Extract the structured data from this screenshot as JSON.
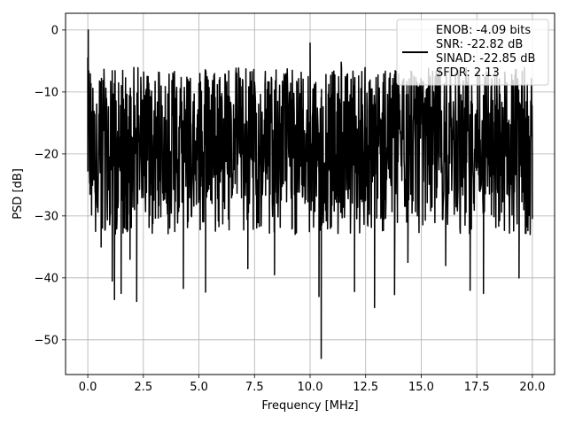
{
  "chart_data": {
    "type": "line",
    "xlabel": "Frequency [MHz]",
    "ylabel": "PSD [dB]",
    "xlim": [
      -1.0,
      21.0
    ],
    "ylim": [
      -55.6,
      2.7
    ],
    "xticks": [
      0.0,
      2.5,
      5.0,
      7.5,
      10.0,
      12.5,
      15.0,
      17.5,
      20.0
    ],
    "xtick_labels": [
      "0.0",
      "2.5",
      "5.0",
      "7.5",
      "10.0",
      "12.5",
      "15.0",
      "17.5",
      "20.0"
    ],
    "yticks": [
      0,
      -10,
      -20,
      -30,
      -40,
      -50
    ],
    "ytick_labels": [
      "0",
      "−10",
      "−20",
      "−30",
      "−40",
      "−50"
    ],
    "grid": true,
    "legend_placement": "upper-right",
    "series": [
      {
        "name": "ENOB: -4.09 bits\nSNR: -22.82 dB\nSINAD: -22.85 dB\nSFDR: 2.13",
        "color": "#000000",
        "x_range": [
          0.0,
          20.0
        ],
        "typical_band": [
          -28,
          -11
        ],
        "notable_points": [
          {
            "x": 0.0,
            "y": -4.5
          },
          {
            "x": 0.02,
            "y": 0.0
          },
          {
            "x": 0.1,
            "y": -26.5
          },
          {
            "x": 0.35,
            "y": -32.5
          },
          {
            "x": 0.6,
            "y": -35.0
          },
          {
            "x": 1.1,
            "y": -40.5
          },
          {
            "x": 1.2,
            "y": -43.5
          },
          {
            "x": 1.5,
            "y": -42.5
          },
          {
            "x": 1.9,
            "y": -37.0
          },
          {
            "x": 2.2,
            "y": -43.8
          },
          {
            "x": 4.3,
            "y": -41.7
          },
          {
            "x": 4.5,
            "y": -8.0
          },
          {
            "x": 5.3,
            "y": -42.3
          },
          {
            "x": 7.2,
            "y": -38.5
          },
          {
            "x": 8.4,
            "y": -39.5
          },
          {
            "x": 9.2,
            "y": -6.5
          },
          {
            "x": 10.0,
            "y": -2.1
          },
          {
            "x": 10.4,
            "y": -43.0
          },
          {
            "x": 10.5,
            "y": -53.0
          },
          {
            "x": 11.4,
            "y": -5.2
          },
          {
            "x": 12.0,
            "y": -42.2
          },
          {
            "x": 12.9,
            "y": -44.8
          },
          {
            "x": 13.8,
            "y": -42.7
          },
          {
            "x": 14.4,
            "y": -37.5
          },
          {
            "x": 16.1,
            "y": -38.0
          },
          {
            "x": 17.2,
            "y": -42.0
          },
          {
            "x": 17.8,
            "y": -42.5
          },
          {
            "x": 19.4,
            "y": -40.0
          },
          {
            "x": 19.9,
            "y": -33.0
          },
          {
            "x": 20.0,
            "y": -30.5
          }
        ]
      }
    ]
  }
}
